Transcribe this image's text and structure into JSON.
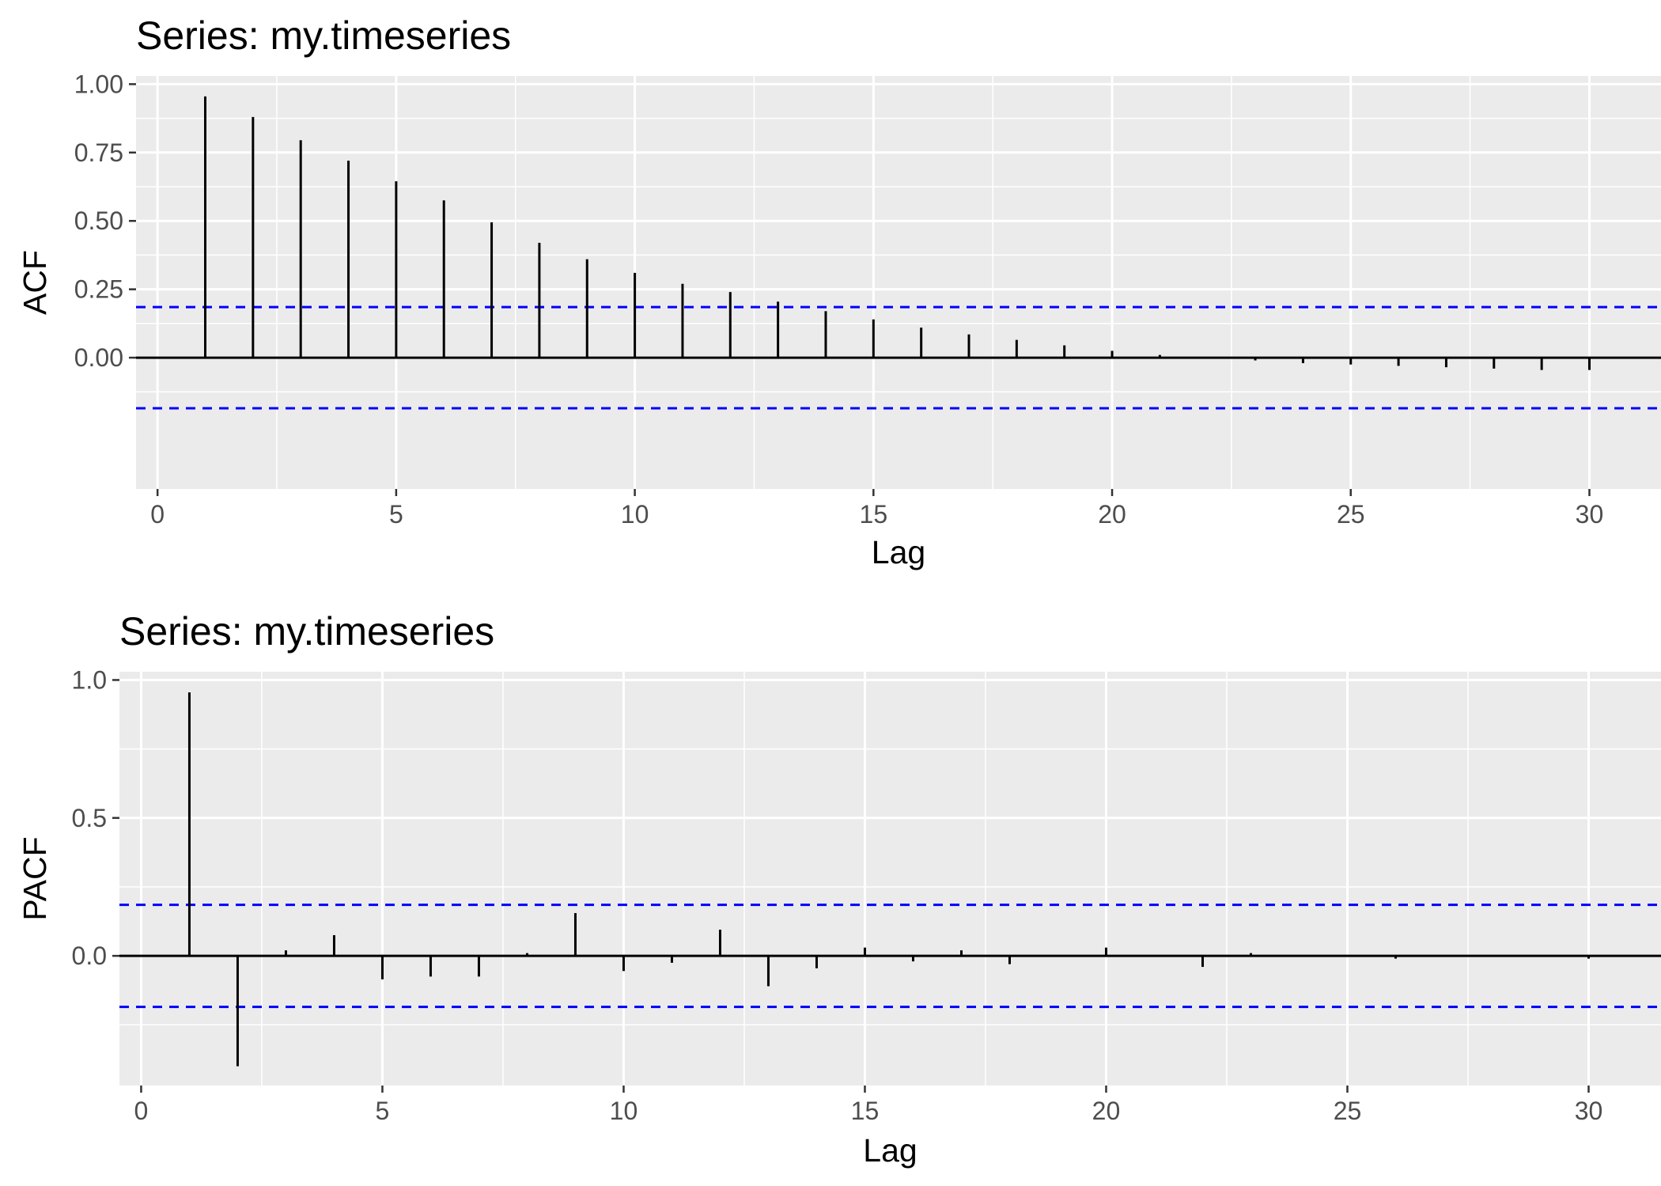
{
  "chart_data": [
    {
      "type": "bar",
      "title": "Series: my.timeseries",
      "xlabel": "Lag",
      "ylabel": "ACF",
      "xlim": [
        -0.45,
        31.5
      ],
      "ylim": [
        -0.48,
        1.03
      ],
      "x_ticks": [
        0,
        5,
        10,
        15,
        20,
        25,
        30
      ],
      "x_tick_labels": [
        "0",
        "5",
        "10",
        "15",
        "20",
        "25",
        "30"
      ],
      "y_ticks": [
        0,
        0.25,
        0.5,
        0.75,
        1.0
      ],
      "y_tick_labels": [
        "0.00",
        "0.25",
        "0.50",
        "0.75",
        "1.00"
      ],
      "confidence_bounds": [
        0.185,
        -0.185
      ],
      "confidence_color": "#0000ff",
      "grid": true,
      "panel_color": "#ebebeb",
      "lags": [
        1,
        2,
        3,
        4,
        5,
        6,
        7,
        8,
        9,
        10,
        11,
        12,
        13,
        14,
        15,
        16,
        17,
        18,
        19,
        20,
        21,
        22,
        23,
        24,
        25,
        26,
        27,
        28,
        29,
        30
      ],
      "values": [
        0.955,
        0.88,
        0.795,
        0.72,
        0.645,
        0.575,
        0.495,
        0.42,
        0.36,
        0.31,
        0.27,
        0.24,
        0.205,
        0.17,
        0.14,
        0.11,
        0.085,
        0.065,
        0.045,
        0.025,
        0.01,
        0.0,
        -0.01,
        -0.02,
        -0.025,
        -0.03,
        -0.035,
        -0.04,
        -0.045,
        -0.045
      ]
    },
    {
      "type": "bar",
      "title": "Series: my.timeseries",
      "xlabel": "Lag",
      "ylabel": "PACF",
      "xlim": [
        -0.45,
        31.5
      ],
      "ylim": [
        -0.47,
        1.03
      ],
      "x_ticks": [
        0,
        5,
        10,
        15,
        20,
        25,
        30
      ],
      "x_tick_labels": [
        "0",
        "5",
        "10",
        "15",
        "20",
        "25",
        "30"
      ],
      "y_ticks": [
        0,
        0.5,
        1.0
      ],
      "y_tick_labels": [
        "0.0",
        "0.5",
        "1.0"
      ],
      "confidence_bounds": [
        0.185,
        -0.185
      ],
      "confidence_color": "#0000ff",
      "grid": true,
      "panel_color": "#ebebeb",
      "lags": [
        1,
        2,
        3,
        4,
        5,
        6,
        7,
        8,
        9,
        10,
        11,
        12,
        13,
        14,
        15,
        16,
        17,
        18,
        19,
        20,
        21,
        22,
        23,
        24,
        25,
        26,
        27,
        28,
        29,
        30
      ],
      "values": [
        0.955,
        -0.4,
        0.02,
        0.075,
        -0.085,
        -0.075,
        -0.075,
        0.01,
        0.155,
        -0.055,
        -0.025,
        0.095,
        -0.11,
        -0.045,
        0.03,
        -0.02,
        0.02,
        -0.03,
        0.0,
        0.03,
        0.0,
        -0.04,
        0.01,
        0.0,
        0.0,
        -0.01,
        0.0,
        0.0,
        0.0,
        -0.01
      ]
    }
  ]
}
